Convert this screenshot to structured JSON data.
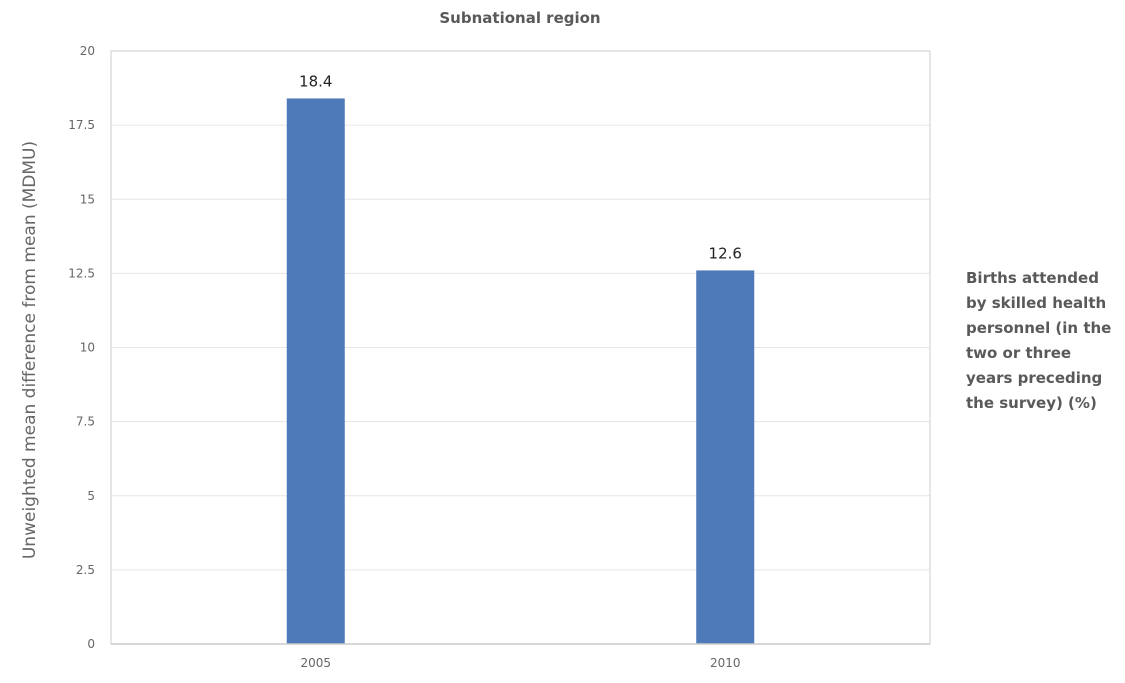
{
  "chart_data": {
    "type": "bar",
    "title": "Subnational region",
    "xlabel": "",
    "ylabel": "Unweighted mean difference from mean (MDMU)",
    "categories": [
      "2005",
      "2010"
    ],
    "series": [
      {
        "name": "Births attended by skilled health personnel (in the two or three years preceding the survey) (%)",
        "values": [
          18.4,
          12.6
        ],
        "data_labels": [
          "18.4",
          "12.6"
        ]
      }
    ],
    "ylim": [
      0,
      20
    ],
    "yticks": [
      0,
      2.5,
      5,
      7.5,
      10,
      12.5,
      15,
      17.5,
      20
    ],
    "ytick_labels": [
      "0",
      "2.5",
      "5",
      "7.5",
      "10",
      "12.5",
      "15",
      "17.5",
      "20"
    ],
    "grid": true,
    "legend_position": "right",
    "colors": {
      "bar": "#4e7ab9",
      "grid": "#e6e6e6",
      "axis": "#cccccc"
    }
  }
}
